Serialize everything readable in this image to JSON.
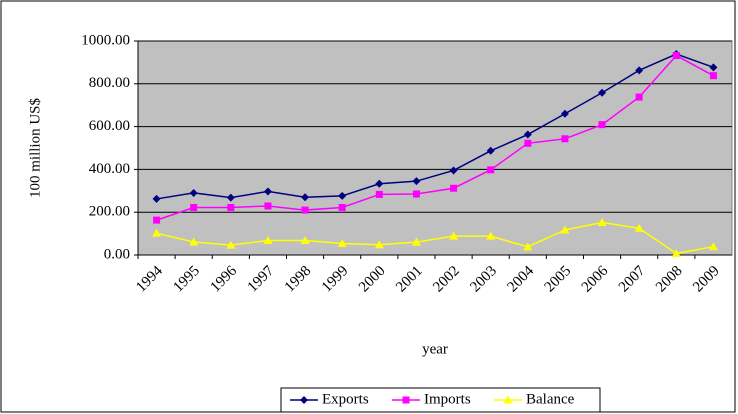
{
  "chart_data": {
    "type": "line",
    "y_label": "100 million US$",
    "x_label": "year",
    "categories": [
      "1994",
      "1995",
      "1996",
      "1997",
      "1998",
      "1999",
      "2000",
      "2001",
      "2002",
      "2003",
      "2004",
      "2005",
      "2006",
      "2007",
      "2008",
      "2009"
    ],
    "series": [
      {
        "name": "Exports",
        "color": "#000080",
        "marker": "diamond",
        "values": [
          262,
          290,
          268,
          297,
          270,
          276,
          333,
          345,
          395,
          487,
          563,
          660,
          758,
          863,
          939,
          877
        ]
      },
      {
        "name": "Imports",
        "color": "#ff00ff",
        "marker": "square",
        "values": [
          163,
          222,
          222,
          229,
          210,
          222,
          283,
          285,
          312,
          398,
          522,
          543,
          609,
          738,
          932,
          838
        ]
      },
      {
        "name": "Balance",
        "color": "#ffff00",
        "marker": "triangle",
        "values": [
          102,
          61,
          46,
          68,
          68,
          54,
          48,
          60,
          88,
          88,
          38,
          117,
          152,
          125,
          7,
          39
        ]
      }
    ],
    "ylim": [
      0,
      1000
    ],
    "yticks": [
      {
        "value": 0,
        "label": "0.00"
      },
      {
        "value": 200,
        "label": "200.00"
      },
      {
        "value": 400,
        "label": "400.00"
      },
      {
        "value": 600,
        "label": "600.00"
      },
      {
        "value": 800,
        "label": "800.00"
      },
      {
        "value": 1000,
        "label": "1000.00"
      }
    ],
    "grid": true,
    "legend": "bottom"
  }
}
